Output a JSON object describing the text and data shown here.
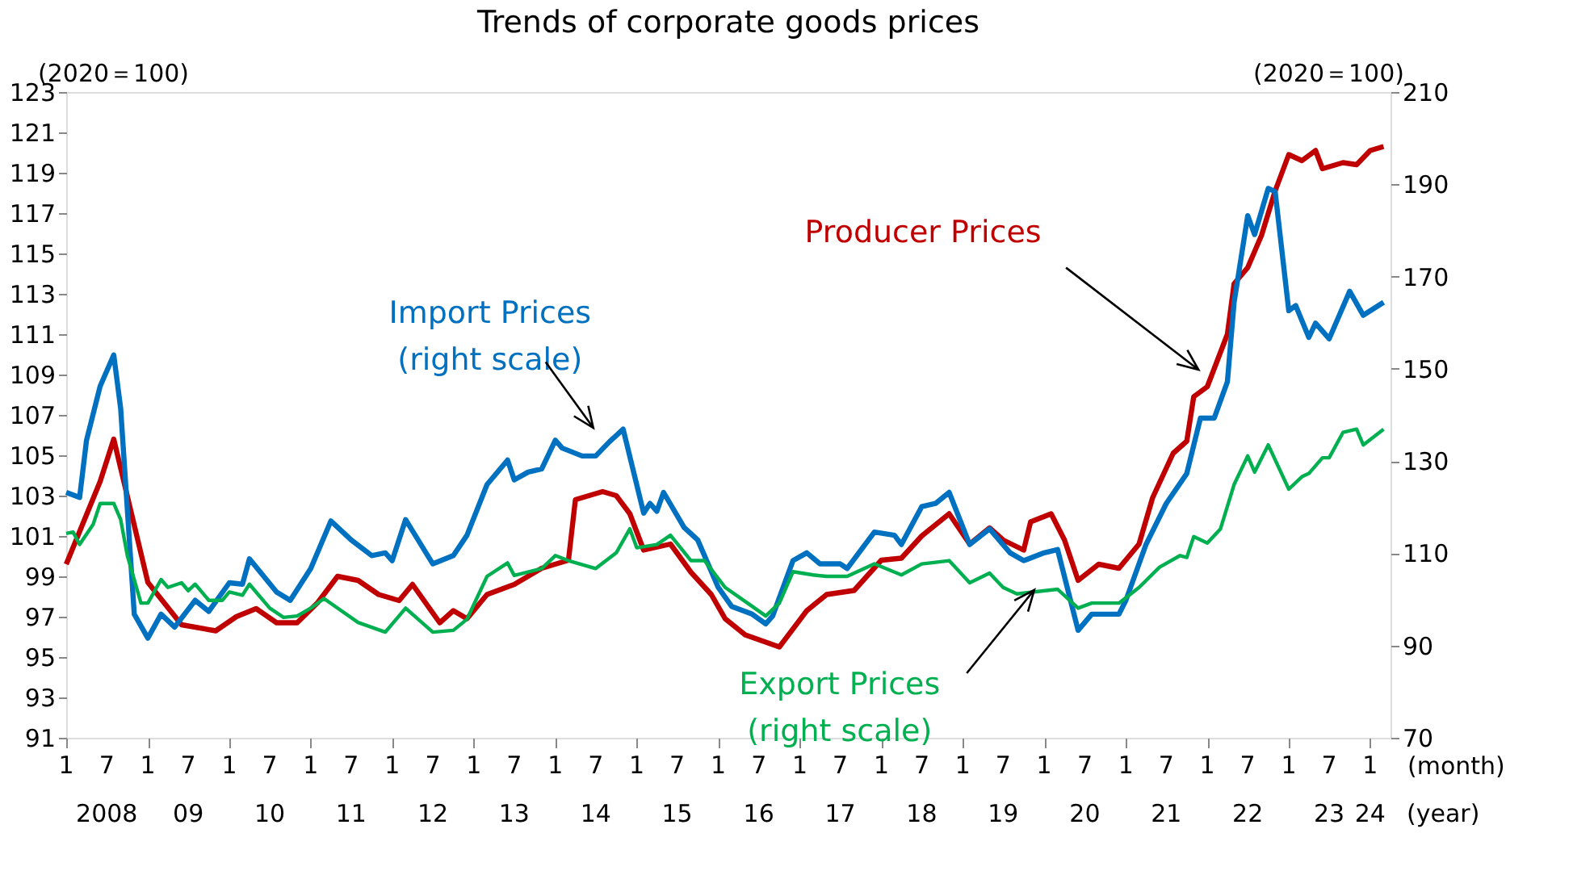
{
  "chart_data": {
    "type": "line",
    "title": "Trends of corporate goods prices",
    "ylabel": "(2020＝100)",
    "y2label": "(2020＝100)",
    "xlabel": "(month)",
    "x2label": "(year)",
    "xlim": [
      "2008-01",
      "2024-04"
    ],
    "xticks": [
      {
        "value": "2008-01",
        "label": "1"
      },
      {
        "value": "2008-07",
        "label": "7"
      },
      {
        "value": "2009-01",
        "label": "1"
      },
      {
        "value": "2009-07",
        "label": "7"
      },
      {
        "value": "2010-01",
        "label": "1"
      },
      {
        "value": "2010-07",
        "label": "7"
      },
      {
        "value": "2011-01",
        "label": "1"
      },
      {
        "value": "2011-07",
        "label": "7"
      },
      {
        "value": "2012-01",
        "label": "1"
      },
      {
        "value": "2012-07",
        "label": "7"
      },
      {
        "value": "2013-01",
        "label": "1"
      },
      {
        "value": "2013-07",
        "label": "7"
      },
      {
        "value": "2014-01",
        "label": "1"
      },
      {
        "value": "2014-07",
        "label": "7"
      },
      {
        "value": "2015-01",
        "label": "1"
      },
      {
        "value": "2015-07",
        "label": "7"
      },
      {
        "value": "2016-01",
        "label": "1"
      },
      {
        "value": "2016-07",
        "label": "7"
      },
      {
        "value": "2017-01",
        "label": "1"
      },
      {
        "value": "2017-07",
        "label": "7"
      },
      {
        "value": "2018-01",
        "label": "1"
      },
      {
        "value": "2018-07",
        "label": "7"
      },
      {
        "value": "2019-01",
        "label": "1"
      },
      {
        "value": "2019-07",
        "label": "7"
      },
      {
        "value": "2020-01",
        "label": "1"
      },
      {
        "value": "2020-07",
        "label": "7"
      },
      {
        "value": "2021-01",
        "label": "1"
      },
      {
        "value": "2021-07",
        "label": "7"
      },
      {
        "value": "2022-01",
        "label": "1"
      },
      {
        "value": "2022-07",
        "label": "7"
      },
      {
        "value": "2023-01",
        "label": "1"
      },
      {
        "value": "2023-07",
        "label": "7"
      },
      {
        "value": "2024-01",
        "label": "1"
      }
    ],
    "x2lim": [
      "2008-01",
      "2024-04"
    ],
    "x2ticks": [
      {
        "value": "2008-07",
        "label": "2008"
      },
      {
        "value": "2009-07",
        "label": "09"
      },
      {
        "value": "2010-07",
        "label": "10"
      },
      {
        "value": "2011-07",
        "label": "11"
      },
      {
        "value": "2012-07",
        "label": "12"
      },
      {
        "value": "2013-07",
        "label": "13"
      },
      {
        "value": "2014-07",
        "label": "14"
      },
      {
        "value": "2015-07",
        "label": "15"
      },
      {
        "value": "2016-07",
        "label": "16"
      },
      {
        "value": "2017-07",
        "label": "17"
      },
      {
        "value": "2018-07",
        "label": "18"
      },
      {
        "value": "2019-07",
        "label": "19"
      },
      {
        "value": "2020-07",
        "label": "20"
      },
      {
        "value": "2021-07",
        "label": "21"
      },
      {
        "value": "2022-07",
        "label": "22"
      },
      {
        "value": "2023-07",
        "label": "23"
      },
      {
        "value": "2024-01",
        "label": "24"
      }
    ],
    "ylim": [
      91,
      123
    ],
    "yticks": [
      91,
      93,
      95,
      97,
      99,
      101,
      103,
      105,
      107,
      109,
      111,
      113,
      115,
      117,
      119,
      121,
      123
    ],
    "y2lim": [
      70,
      210
    ],
    "y2ticks": [
      70,
      90,
      110,
      130,
      150,
      170,
      190,
      210
    ],
    "series": [
      {
        "name": "Producer Prices",
        "color": "#c00000",
        "x": [
          "2008-01",
          "2008-06",
          "2008-08",
          "2009-01",
          "2009-06",
          "2009-11",
          "2010-02",
          "2010-05",
          "2010-08",
          "2010-11",
          "2011-02",
          "2011-05",
          "2011-08",
          "2011-11",
          "2012-02",
          "2012-04",
          "2012-08",
          "2012-10",
          "2012-12",
          "2013-03",
          "2013-07",
          "2013-11",
          "2014-03",
          "2014-04",
          "2014-08",
          "2014-10",
          "2014-12",
          "2015-02",
          "2015-06",
          "2015-09",
          "2015-12",
          "2016-02",
          "2016-05",
          "2016-10",
          "2017-02",
          "2017-05",
          "2017-09",
          "2018-01",
          "2018-04",
          "2018-07",
          "2018-11",
          "2019-02",
          "2019-05",
          "2019-07",
          "2019-10",
          "2019-11",
          "2020-02",
          "2020-04",
          "2020-06",
          "2020-09",
          "2020-12",
          "2021-03",
          "2021-05",
          "2021-08",
          "2021-10",
          "2021-11",
          "2022-01",
          "2022-04",
          "2022-05",
          "2022-07",
          "2022-09",
          "2022-11",
          "2023-01",
          "2023-03",
          "2023-05",
          "2023-06",
          "2023-09",
          "2023-11",
          "2024-01",
          "2024-03"
        ],
        "values": [
          99.6,
          103.7,
          105.8,
          98.7,
          96.6,
          96.3,
          97.0,
          97.4,
          96.7,
          96.7,
          97.7,
          99.0,
          98.8,
          98.1,
          97.8,
          98.6,
          96.7,
          97.3,
          96.9,
          98.1,
          98.6,
          99.4,
          99.8,
          102.8,
          103.2,
          103.0,
          102.1,
          100.3,
          100.6,
          99.2,
          98.1,
          96.9,
          96.1,
          95.5,
          97.3,
          98.1,
          98.3,
          99.8,
          99.9,
          101.0,
          102.1,
          100.6,
          101.4,
          100.8,
          100.3,
          101.7,
          102.1,
          100.8,
          98.8,
          99.6,
          99.4,
          100.6,
          102.9,
          105.1,
          105.7,
          107.9,
          108.4,
          111.0,
          113.5,
          114.3,
          115.9,
          118.1,
          119.9,
          119.6,
          120.1,
          119.2,
          119.5,
          119.4,
          120.1,
          120.3
        ]
      },
      {
        "name": "Import Prices\n(right scale)",
        "color": "#0070c0",
        "axis": "y2",
        "x": [
          "2008-01",
          "2008-03",
          "2008-04",
          "2008-06",
          "2008-08",
          "2008-09",
          "2008-11",
          "2009-01",
          "2009-03",
          "2009-05",
          "2009-08",
          "2009-10",
          "2010-01",
          "2010-03",
          "2010-04",
          "2010-08",
          "2010-10",
          "2011-01",
          "2011-04",
          "2011-07",
          "2011-10",
          "2011-12",
          "2012-01",
          "2012-03",
          "2012-07",
          "2012-10",
          "2012-12",
          "2013-03",
          "2013-06",
          "2013-07",
          "2013-09",
          "2013-11",
          "2014-01",
          "2014-02",
          "2014-05",
          "2014-07",
          "2014-09",
          "2014-11",
          "2015-02",
          "2015-03",
          "2015-04",
          "2015-05",
          "2015-08",
          "2015-10",
          "2016-01",
          "2016-03",
          "2016-06",
          "2016-08",
          "2016-09",
          "2016-12",
          "2017-02",
          "2017-04",
          "2017-07",
          "2017-08",
          "2017-12",
          "2018-03",
          "2018-04",
          "2018-07",
          "2018-09",
          "2018-11",
          "2019-02",
          "2019-05",
          "2019-08",
          "2019-10",
          "2020-01",
          "2020-03",
          "2020-06",
          "2020-08",
          "2020-12",
          "2021-01",
          "2021-04",
          "2021-07",
          "2021-10",
          "2021-12",
          "2022-02",
          "2022-04",
          "2022-05",
          "2022-07",
          "2022-08",
          "2022-10",
          "2022-11",
          "2023-01",
          "2023-02",
          "2023-04",
          "2023-05",
          "2023-07",
          "2023-10",
          "2023-12",
          "2024-03"
        ],
        "values": [
          123.2,
          122.1,
          134.5,
          146.2,
          153.0,
          141.4,
          96.8,
          91.6,
          96.8,
          94.0,
          99.8,
          97.4,
          103.6,
          103.3,
          108.8,
          101.6,
          99.8,
          106.7,
          117.0,
          112.9,
          109.5,
          110.1,
          108.4,
          117.3,
          107.7,
          109.5,
          113.9,
          124.9,
          130.2,
          125.9,
          127.6,
          128.3,
          134.5,
          132.8,
          131.1,
          131.1,
          134.2,
          136.9,
          118.7,
          120.8,
          119.1,
          123.2,
          115.6,
          112.9,
          102.6,
          98.5,
          96.8,
          94.7,
          96.4,
          108.4,
          110.1,
          107.7,
          107.7,
          106.7,
          114.6,
          113.9,
          111.9,
          120.1,
          120.8,
          123.2,
          111.9,
          115.3,
          110.1,
          108.4,
          110.1,
          110.8,
          93.3,
          96.8,
          96.8,
          99.8,
          111.9,
          120.8,
          127.3,
          139.3,
          139.3,
          147.2,
          164.4,
          183.2,
          179.1,
          189.1,
          188.4,
          162.6,
          163.7,
          156.8,
          159.9,
          156.5,
          166.8,
          161.6,
          164.4
        ]
      },
      {
        "name": "Export Prices\n(right scale)",
        "color": "#00b050",
        "axis": "y2",
        "x": [
          "2008-01",
          "2008-02",
          "2008-03",
          "2008-05",
          "2008-06",
          "2008-08",
          "2008-09",
          "2008-10",
          "2008-12",
          "2009-01",
          "2009-03",
          "2009-04",
          "2009-06",
          "2009-07",
          "2009-08",
          "2009-10",
          "2009-12",
          "2010-01",
          "2010-03",
          "2010-04",
          "2010-07",
          "2010-09",
          "2010-11",
          "2011-01",
          "2011-03",
          "2011-08",
          "2011-12",
          "2012-03",
          "2012-07",
          "2012-10",
          "2012-12",
          "2013-03",
          "2013-06",
          "2013-07",
          "2013-11",
          "2014-01",
          "2014-03",
          "2014-07",
          "2014-10",
          "2014-12",
          "2015-01",
          "2015-04",
          "2015-06",
          "2015-09",
          "2015-11",
          "2016-02",
          "2016-06",
          "2016-08",
          "2016-10",
          "2016-12",
          "2017-03",
          "2017-05",
          "2017-08",
          "2017-12",
          "2018-04",
          "2018-07",
          "2018-11",
          "2019-02",
          "2019-05",
          "2019-07",
          "2019-09",
          "2020-03",
          "2020-06",
          "2020-08",
          "2020-12",
          "2021-03",
          "2021-06",
          "2021-09",
          "2021-10",
          "2021-11",
          "2022-01",
          "2022-03",
          "2022-05",
          "2022-07",
          "2022-08",
          "2022-10",
          "2023-01",
          "2023-03",
          "2023-04",
          "2023-06",
          "2023-07",
          "2023-09",
          "2023-11",
          "2023-12",
          "2024-03"
        ],
        "values": [
          114.3,
          114.6,
          111.9,
          116.3,
          120.8,
          120.8,
          117.3,
          109.5,
          99.2,
          99.2,
          104.3,
          102.6,
          103.6,
          101.9,
          103.3,
          99.8,
          99.8,
          101.6,
          100.9,
          103.3,
          98.1,
          96.1,
          96.4,
          98.1,
          100.2,
          95.0,
          92.9,
          98.1,
          92.9,
          93.3,
          95.7,
          105.0,
          107.9,
          105.2,
          106.7,
          109.5,
          108.4,
          106.7,
          110.1,
          115.3,
          111.2,
          111.9,
          113.9,
          108.4,
          108.4,
          102.6,
          98.5,
          96.4,
          99.2,
          106.0,
          105.3,
          105.0,
          105.0,
          107.7,
          105.3,
          107.7,
          108.4,
          103.6,
          105.7,
          102.6,
          101.2,
          102.2,
          98.1,
          99.2,
          99.2,
          102.6,
          107.0,
          109.5,
          109.1,
          113.6,
          112.2,
          115.3,
          124.9,
          131.1,
          127.6,
          133.5,
          123.9,
          126.6,
          127.3,
          130.7,
          130.7,
          136.2,
          136.9,
          133.5,
          136.9
        ]
      }
    ]
  }
}
